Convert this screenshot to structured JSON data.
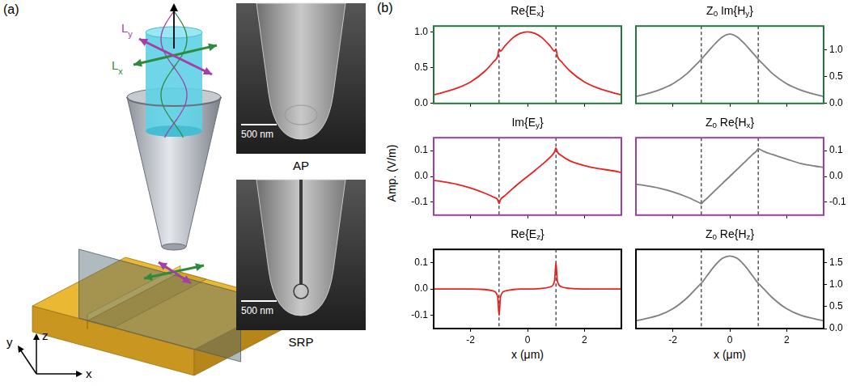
{
  "panel_a": {
    "label": "(a)",
    "beam_labels": [
      {
        "segments": [
          {
            "text": "L"
          },
          {
            "sub": "y"
          }
        ],
        "color": "#a43ea8"
      },
      {
        "segments": [
          {
            "text": "L"
          },
          {
            "sub": "x"
          }
        ],
        "color": "#2e8b3e"
      }
    ],
    "axes": {
      "x": "x",
      "y": "y",
      "z": "z"
    },
    "images": [
      {
        "label": "AP",
        "scale_bar": "500 nm"
      },
      {
        "label": "SRP",
        "scale_bar": "500 nm"
      }
    ]
  },
  "panel_b": {
    "label": "(b)",
    "y_axis_title": "Amp. (V/m)"
  },
  "chart_data": [
    {
      "type": "line",
      "title": [
        {
          "text": "Re{E"
        },
        {
          "sub": "x"
        },
        {
          "text": "}"
        }
      ],
      "x": [
        -3.3,
        -3,
        -2.5,
        -2,
        -1.5,
        -1.2,
        -1.05,
        -1,
        -0.95,
        -0.8,
        -0.5,
        -0.25,
        0,
        0.25,
        0.5,
        0.8,
        0.95,
        1,
        1.05,
        1.2,
        1.5,
        2,
        2.5,
        3,
        3.3
      ],
      "values": [
        0.12,
        0.15,
        0.21,
        0.3,
        0.45,
        0.58,
        0.66,
        0.76,
        0.73,
        0.8,
        0.92,
        0.98,
        1.0,
        0.98,
        0.92,
        0.8,
        0.73,
        0.76,
        0.66,
        0.58,
        0.45,
        0.3,
        0.21,
        0.15,
        0.12
      ],
      "color": "#e8231f",
      "xlim": [
        -3.3,
        3.3
      ],
      "xticks": [
        -2,
        0,
        2
      ],
      "ylim": [
        0,
        1.08
      ],
      "yticks": [
        {
          "value": 0,
          "label": "0.0"
        },
        0.5,
        {
          "value": 1,
          "label": "1.0"
        }
      ],
      "vlines": [
        -1,
        1
      ],
      "tick_labels": "y"
    },
    {
      "type": "line",
      "title": [
        {
          "text": "Z"
        },
        {
          "sub": "0"
        },
        {
          "text": " Im{H"
        },
        {
          "sub": "y"
        },
        {
          "text": "}"
        }
      ],
      "x": [
        -3.3,
        -3,
        -2.5,
        -2,
        -1.5,
        -1.2,
        -1.05,
        -1,
        -0.95,
        -0.8,
        -0.5,
        -0.25,
        0,
        0.25,
        0.5,
        0.8,
        0.95,
        1,
        1.05,
        1.2,
        1.5,
        2,
        2.5,
        3,
        3.3
      ],
      "values": [
        0.13,
        0.17,
        0.25,
        0.37,
        0.56,
        0.72,
        0.8,
        0.83,
        0.86,
        0.95,
        1.13,
        1.25,
        1.3,
        1.25,
        1.13,
        0.95,
        0.86,
        0.83,
        0.8,
        0.72,
        0.56,
        0.37,
        0.25,
        0.17,
        0.13
      ],
      "color": "#7f7f7f",
      "xlim": [
        -3.3,
        3.3
      ],
      "xticks": [
        -2,
        0,
        2
      ],
      "y2lim": [
        0,
        1.45
      ],
      "y2ticks": [
        {
          "value": 0,
          "label": "0.0"
        },
        0.5,
        {
          "value": 1,
          "label": "1.0"
        }
      ],
      "vlines": [
        -1,
        1
      ],
      "tick_labels": "y"
    },
    {
      "type": "line",
      "title": [
        {
          "text": "Im{E"
        },
        {
          "sub": "y"
        },
        {
          "text": "}"
        }
      ],
      "x": [
        -3.3,
        -3,
        -2.5,
        -2,
        -1.5,
        -1.2,
        -1.05,
        -1,
        -0.95,
        -0.8,
        -0.5,
        -0.25,
        0,
        0.25,
        0.5,
        0.8,
        0.95,
        1,
        1.05,
        1.2,
        1.5,
        2,
        2.5,
        3,
        3.3
      ],
      "values": [
        -0.015,
        -0.02,
        -0.03,
        -0.045,
        -0.065,
        -0.08,
        -0.09,
        -0.105,
        -0.09,
        -0.075,
        -0.045,
        -0.022,
        0,
        0.022,
        0.045,
        0.075,
        0.095,
        0.11,
        0.095,
        0.08,
        0.06,
        0.042,
        0.03,
        0.022,
        0.015
      ],
      "color": "#e8231f",
      "xlim": [
        -3.3,
        3.3
      ],
      "xticks": [
        -2,
        0,
        2
      ],
      "ylim": [
        -0.15,
        0.15
      ],
      "yticks": [
        -0.1,
        {
          "value": 0,
          "label": "0.0"
        },
        0.1
      ],
      "vlines": [
        -1,
        1
      ],
      "tick_labels": "y"
    },
    {
      "type": "line",
      "title": [
        {
          "text": "Z"
        },
        {
          "sub": "0"
        },
        {
          "text": " Re{H"
        },
        {
          "sub": "x"
        },
        {
          "text": "}"
        }
      ],
      "x": [
        -3.3,
        -3,
        -2.5,
        -2,
        -1.5,
        -1.2,
        -1.05,
        -1,
        -0.95,
        -0.8,
        -0.5,
        -0.25,
        0,
        0.25,
        0.5,
        0.8,
        0.95,
        1,
        1.05,
        1.2,
        1.5,
        2,
        2.5,
        3,
        3.3
      ],
      "values": [
        -0.03,
        -0.035,
        -0.045,
        -0.06,
        -0.08,
        -0.095,
        -0.103,
        -0.106,
        -0.1,
        -0.085,
        -0.053,
        -0.026,
        0,
        0.026,
        0.053,
        0.085,
        0.1,
        0.108,
        0.105,
        0.097,
        0.085,
        0.067,
        0.05,
        0.04,
        0.035
      ],
      "color": "#7f7f7f",
      "xlim": [
        -3.3,
        3.3
      ],
      "xticks": [
        -2,
        0,
        2
      ],
      "y2lim": [
        -0.15,
        0.15
      ],
      "y2ticks": [
        -0.1,
        {
          "value": 0,
          "label": "0.0"
        },
        0.1
      ],
      "vlines": [
        -1,
        1
      ],
      "tick_labels": "y"
    },
    {
      "type": "line",
      "title": [
        {
          "text": "Re{E"
        },
        {
          "sub": "z"
        },
        {
          "text": "}"
        }
      ],
      "x": [
        -3.3,
        -3,
        -2.5,
        -2,
        -1.5,
        -1.2,
        -1.05,
        -1,
        -0.95,
        -0.8,
        -0.5,
        -0.25,
        0,
        0.25,
        0.5,
        0.8,
        0.95,
        1,
        1.05,
        1.2,
        1.5,
        2,
        2.5,
        3,
        3.3
      ],
      "values": [
        0,
        0,
        0,
        0,
        -0.002,
        -0.008,
        -0.03,
        -0.1,
        -0.03,
        -0.008,
        -0.002,
        0,
        0,
        0,
        0.002,
        0.008,
        0.03,
        0.1,
        0.03,
        0.008,
        0.002,
        0,
        0,
        0,
        0
      ],
      "color": "#e8231f",
      "xlim": [
        -3.3,
        3.3
      ],
      "xticks": [
        -2,
        0,
        2
      ],
      "ylim": [
        -0.15,
        0.15
      ],
      "yticks": [
        -0.1,
        {
          "value": 0,
          "label": "0.0"
        },
        0.1
      ],
      "vlines": [
        -1,
        1
      ],
      "x_label": "x (μm)"
    },
    {
      "type": "line",
      "title": [
        {
          "text": "Z"
        },
        {
          "sub": "0"
        },
        {
          "text": " Re{H"
        },
        {
          "sub": "z"
        },
        {
          "text": "}"
        }
      ],
      "x": [
        -3.3,
        -3,
        -2.5,
        -2,
        -1.5,
        -1.2,
        -1.05,
        -1,
        -0.95,
        -0.8,
        -0.5,
        -0.25,
        0,
        0.25,
        0.5,
        0.8,
        0.95,
        1,
        1.05,
        1.2,
        1.5,
        2,
        2.5,
        3,
        3.3
      ],
      "values": [
        0.18,
        0.22,
        0.3,
        0.45,
        0.7,
        0.9,
        1.0,
        1.03,
        1.07,
        1.2,
        1.45,
        1.6,
        1.65,
        1.6,
        1.45,
        1.2,
        1.07,
        1.03,
        1.0,
        0.9,
        0.7,
        0.45,
        0.3,
        0.22,
        0.18
      ],
      "color": "#7f7f7f",
      "xlim": [
        -3.3,
        3.3
      ],
      "xticks": [
        -2,
        0,
        2
      ],
      "y2lim": [
        0,
        1.8
      ],
      "y2ticks": [
        {
          "value": 0,
          "label": "0.0"
        },
        0.5,
        {
          "value": 1,
          "label": "1.0"
        },
        1.5
      ],
      "vlines": [
        -1,
        1
      ],
      "x_label": "x (μm)"
    }
  ]
}
